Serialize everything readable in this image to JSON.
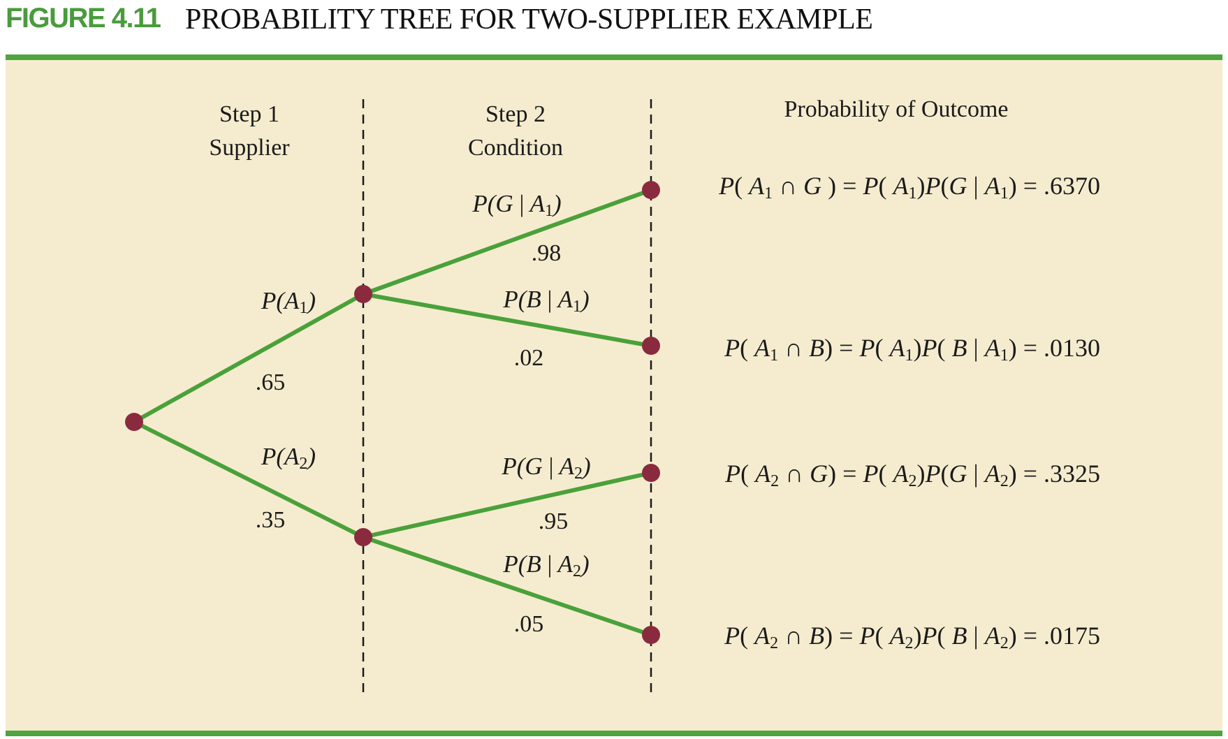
{
  "figure": {
    "number": "FIGURE 4.11",
    "title": "PROBABILITY TREE FOR TWO-SUPPLIER EXAMPLE"
  },
  "headers": {
    "step1_line1": "Step 1",
    "step1_line2": "Supplier",
    "step2_line1": "Step 2",
    "step2_line2": "Condition",
    "outcome": "Probability of Outcome"
  },
  "branches": {
    "a1": {
      "p": "P",
      "var": "A",
      "sub": "1",
      "value": ".65"
    },
    "a2": {
      "p": "P",
      "var": "A",
      "sub": "2",
      "value": ".35"
    },
    "g_a1": {
      "event": "G",
      "var": "A",
      "sub": "1",
      "value": ".98"
    },
    "b_a1": {
      "event": "B",
      "var": "A",
      "sub": "1",
      "value": ".02"
    },
    "g_a2": {
      "event": "G",
      "var": "A",
      "sub": "2",
      "value": ".95"
    },
    "b_a2": {
      "event": "B",
      "var": "A",
      "sub": "2",
      "value": ".05"
    }
  },
  "outcomes": [
    {
      "sub": "1",
      "event": "G",
      "result": ".6370"
    },
    {
      "sub": "1",
      "event": "B",
      "result": ".0130"
    },
    {
      "sub": "2",
      "event": "G",
      "result": ".3325"
    },
    {
      "sub": "2",
      "event": "B",
      "result": ".0175"
    }
  ],
  "symbols": {
    "given": "|",
    "intersect": "∩",
    "equals": "="
  },
  "colors": {
    "accent_green": "#4ea43e",
    "branch_green": "#4aa13a",
    "node": "#8a2a3f",
    "panel": "#f5eccf"
  }
}
